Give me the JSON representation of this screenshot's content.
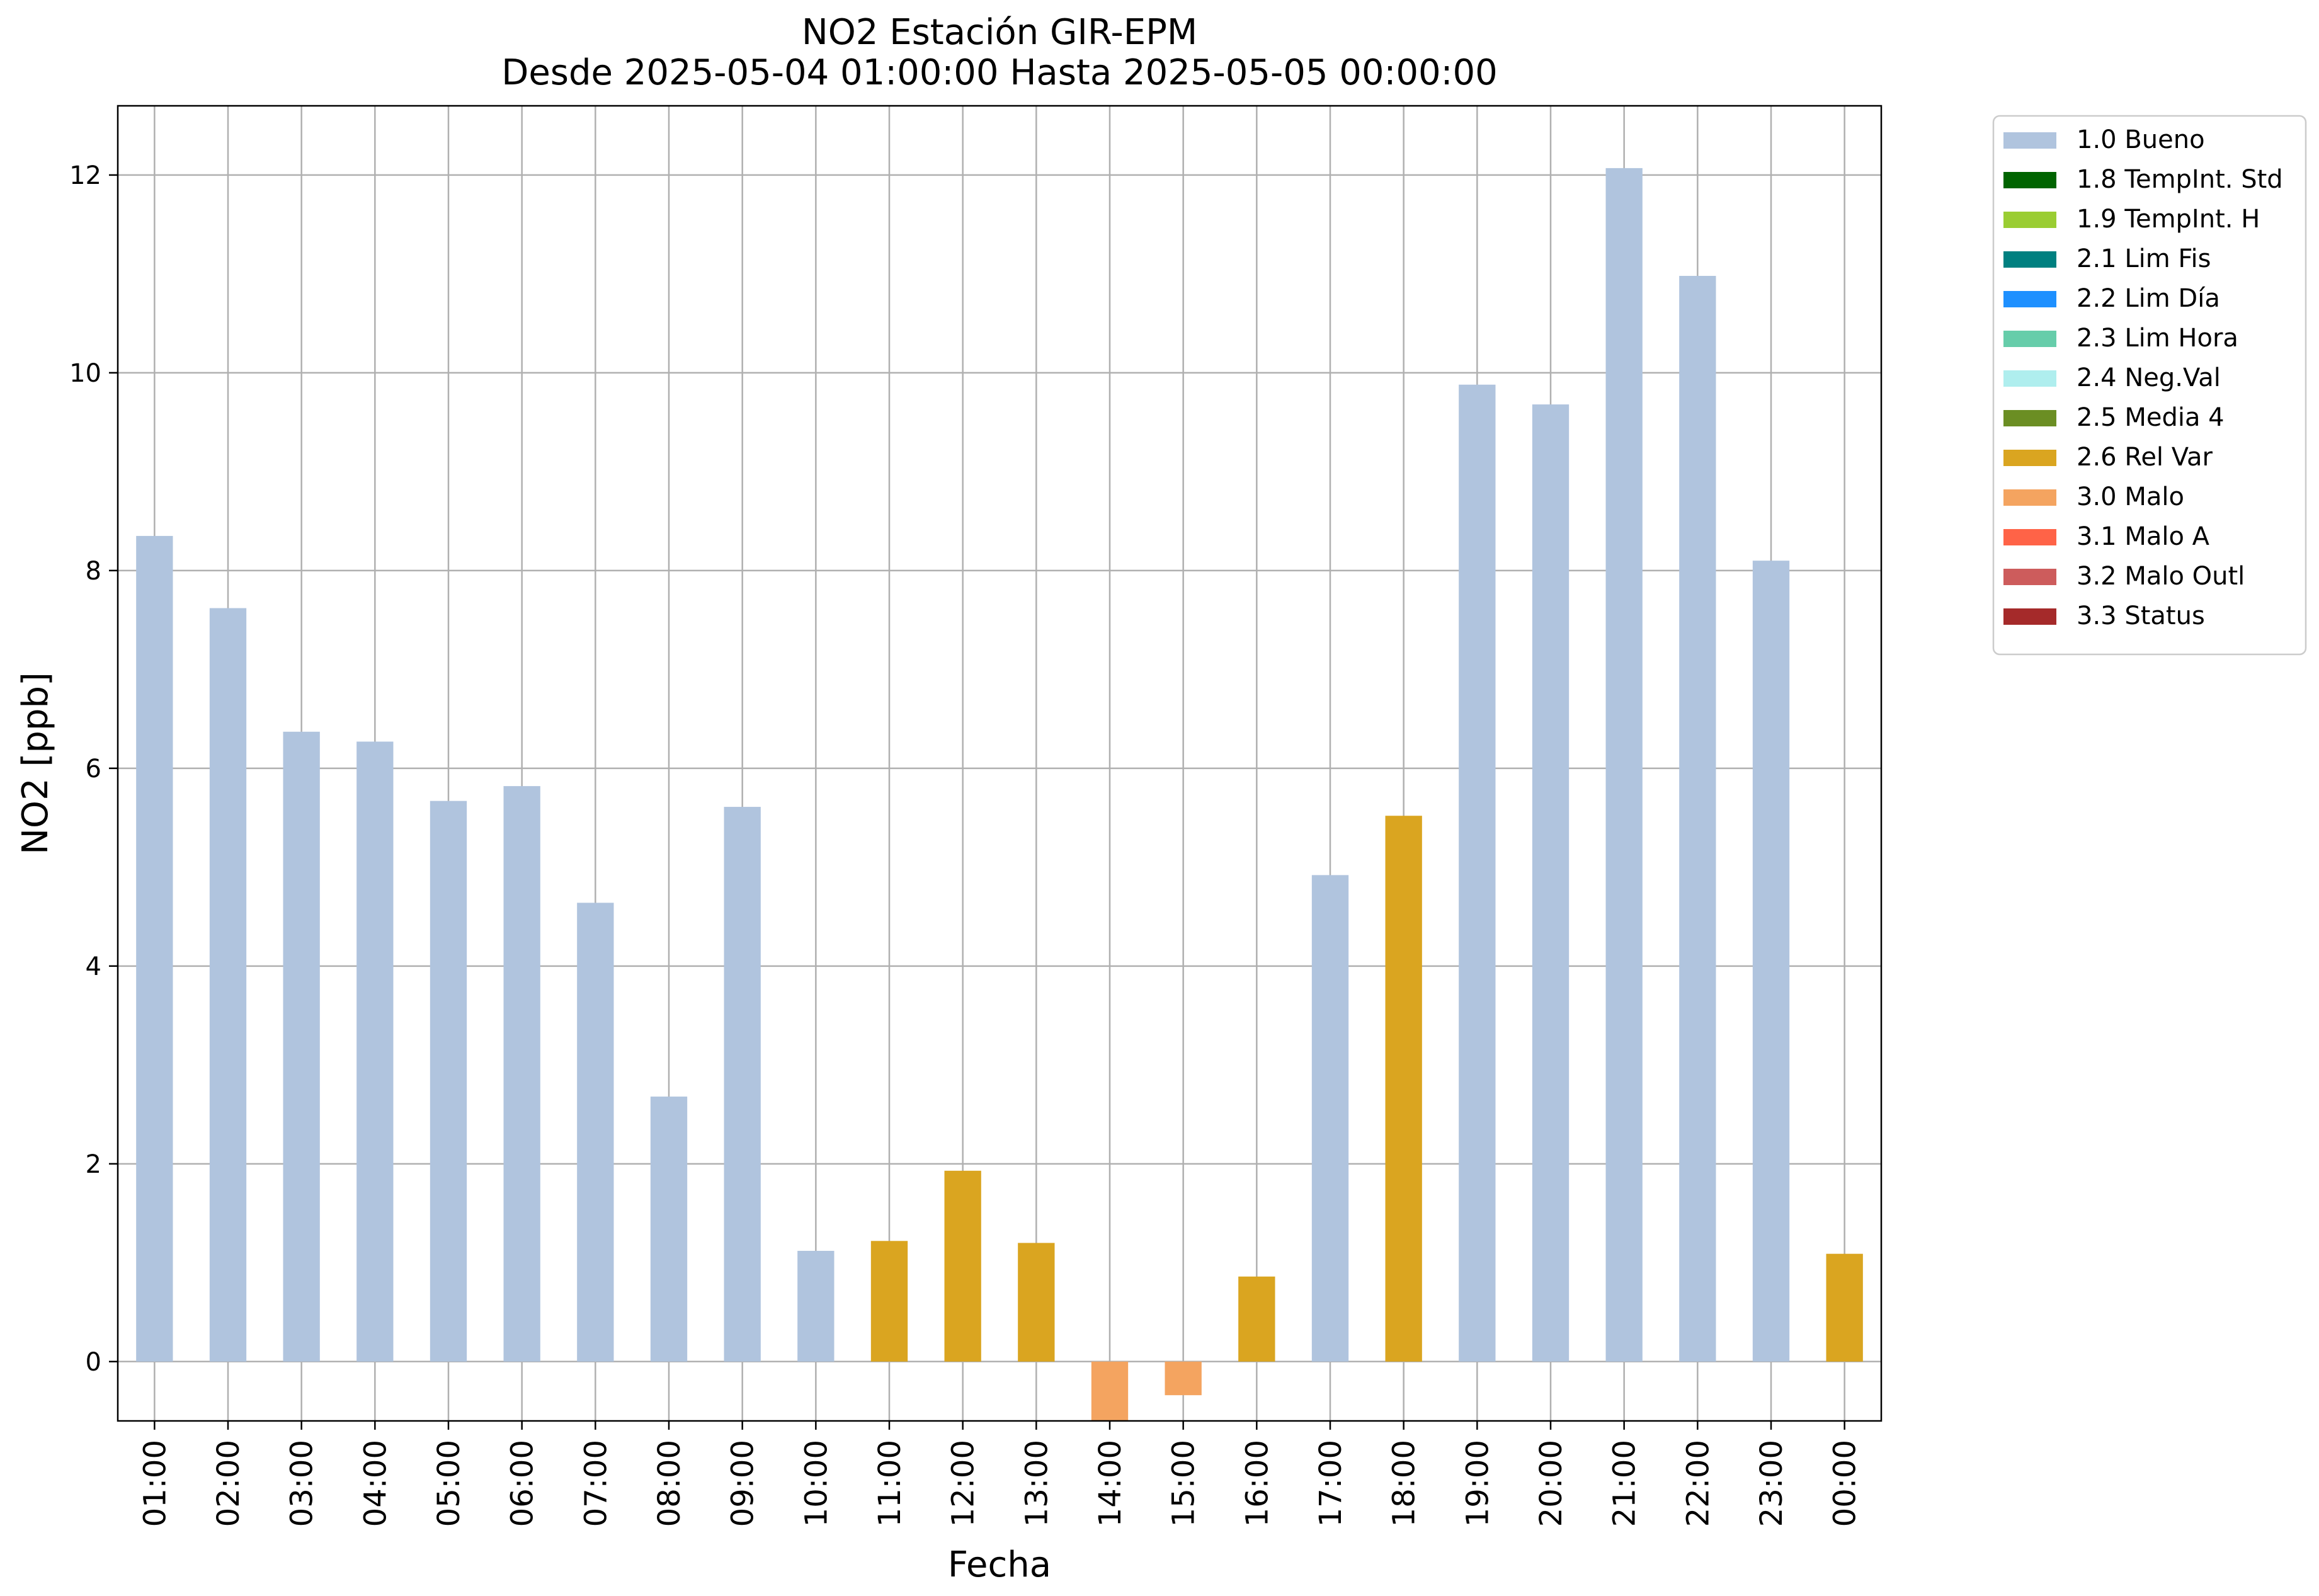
{
  "chart_data": {
    "type": "bar",
    "title": [
      "NO2 Estación GIR-EPM",
      "Desde 2025-05-04 01:00:00 Hasta 2025-05-05 00:00:00"
    ],
    "xlabel": "Fecha",
    "ylabel": "NO2 [ppb]",
    "ylim": [
      -0.6,
      12.7
    ],
    "yticks": [
      0,
      2,
      4,
      6,
      8,
      10,
      12
    ],
    "grid": true,
    "legend_position": "outside-top-right",
    "categories": [
      "01:00",
      "02:00",
      "03:00",
      "04:00",
      "05:00",
      "06:00",
      "07:00",
      "08:00",
      "09:00",
      "10:00",
      "11:00",
      "12:00",
      "13:00",
      "14:00",
      "15:00",
      "16:00",
      "17:00",
      "18:00",
      "19:00",
      "20:00",
      "21:00",
      "22:00",
      "23:00",
      "00:00"
    ],
    "values": [
      8.35,
      7.62,
      6.37,
      6.27,
      5.67,
      5.82,
      4.64,
      2.68,
      5.61,
      1.12,
      1.22,
      1.93,
      1.2,
      -0.65,
      -0.34,
      0.86,
      4.92,
      5.52,
      9.88,
      9.68,
      12.07,
      10.98,
      8.1,
      1.09
    ],
    "flags": [
      "1.0 Bueno",
      "1.0 Bueno",
      "1.0 Bueno",
      "1.0 Bueno",
      "1.0 Bueno",
      "1.0 Bueno",
      "1.0 Bueno",
      "1.0 Bueno",
      "1.0 Bueno",
      "1.0 Bueno",
      "2.6 Rel Var",
      "2.6 Rel Var",
      "2.6 Rel Var",
      "3.0 Malo",
      "3.0 Malo",
      "2.6 Rel Var",
      "1.0 Bueno",
      "2.6 Rel Var",
      "1.0 Bueno",
      "1.0 Bueno",
      "1.0 Bueno",
      "1.0 Bueno",
      "1.0 Bueno",
      "2.6 Rel Var"
    ],
    "legend": [
      {
        "label": "1.0 Bueno",
        "color": "#b0c4de"
      },
      {
        "label": "1.8 TempInt. Std",
        "color": "#006400"
      },
      {
        "label": "1.9 TempInt. H",
        "color": "#9acd32"
      },
      {
        "label": "2.1 Lim Fis",
        "color": "#008080"
      },
      {
        "label": "2.2 Lim Día",
        "color": "#1e90ff"
      },
      {
        "label": "2.3 Lim Hora",
        "color": "#66cdaa"
      },
      {
        "label": "2.4 Neg.Val",
        "color": "#afeeee"
      },
      {
        "label": "2.5 Media 4",
        "color": "#6b8e23"
      },
      {
        "label": "2.6 Rel Var",
        "color": "#daa520"
      },
      {
        "label": "3.0 Malo",
        "color": "#f4a460"
      },
      {
        "label": "3.1 Malo A",
        "color": "#ff6347"
      },
      {
        "label": "3.2 Malo Outl",
        "color": "#cd5c5c"
      },
      {
        "label": "3.3 Status",
        "color": "#a52a2a"
      }
    ]
  }
}
